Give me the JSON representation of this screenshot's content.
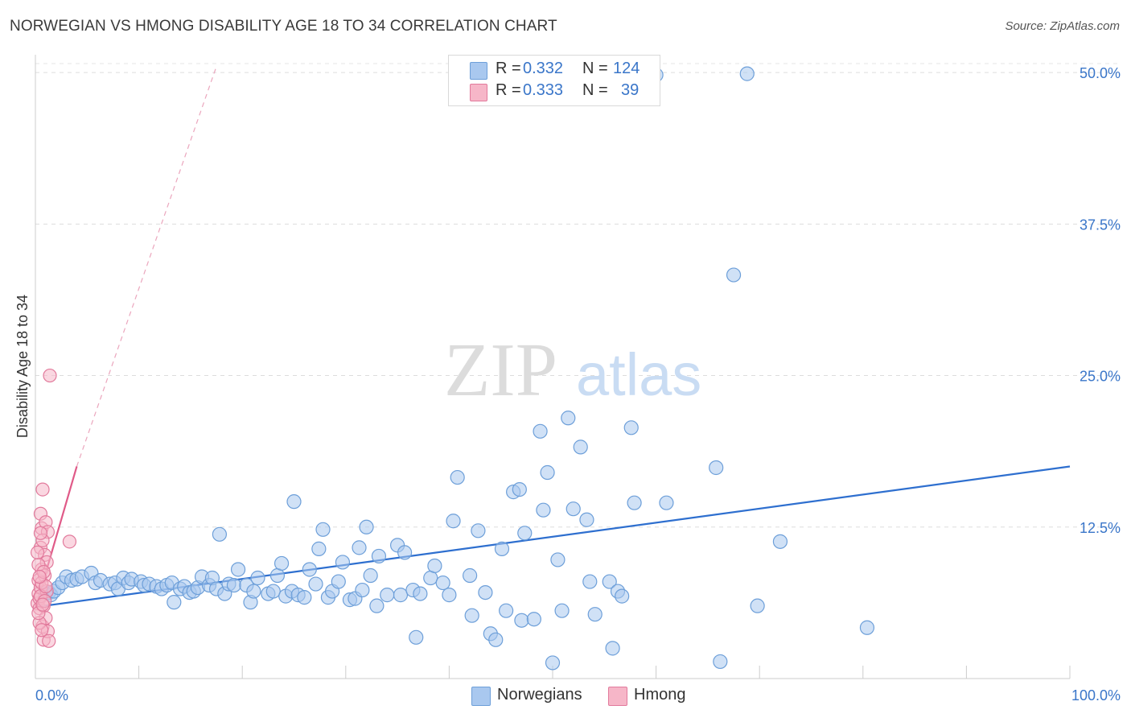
{
  "header": {
    "title": "NORWEGIAN VS HMONG DISABILITY AGE 18 TO 34 CORRELATION CHART",
    "source": "Source: ZipAtlas.com"
  },
  "watermark": {
    "zip": "ZIP",
    "atlas": "atlas"
  },
  "legend": {
    "rows": [
      {
        "r_label": "R =",
        "r_value": "0.332",
        "n_label": "N =",
        "n_value": "124",
        "color": "#a9c8ef"
      },
      {
        "r_label": "R =",
        "r_value": "0.333",
        "n_label": "N =",
        "n_value": "39",
        "color": "#f6b6c8"
      }
    ]
  },
  "bottom_legend": [
    {
      "label": "Norwegians",
      "color": "#a9c8ef"
    },
    {
      "label": "Hmong",
      "color": "#f6b6c8"
    }
  ],
  "colors": {
    "norwegian_fill": "#a9c8ef",
    "norwegian_stroke": "#6d9fd9",
    "norwegian_line": "#2e6fcf",
    "hmong_fill": "#f6b6c8",
    "hmong_stroke": "#e27a9c",
    "hmong_line": "#e05a88",
    "tick": "#3a76c9"
  },
  "chart_data": {
    "type": "scatter",
    "title": "NORWEGIAN VS HMONG DISABILITY AGE 18 TO 34 CORRELATION CHART",
    "xlabel": "",
    "ylabel": "Disability Age 18 to 34",
    "xlim": [
      0,
      100
    ],
    "ylim": [
      0,
      52
    ],
    "x_tick_labels": [
      "0.0%",
      "100.0%"
    ],
    "y_ticks": [
      12.5,
      25.0,
      37.5,
      50.0
    ],
    "y_tick_labels": [
      "12.5%",
      "25.0%",
      "37.5%",
      "50.0%"
    ],
    "grid": "horizontal dashed",
    "legend_position": "top-center",
    "series": [
      {
        "name": "Norwegians",
        "r": 0.332,
        "n": 124,
        "trend": {
          "x": [
            0,
            100
          ],
          "y": [
            5.9,
            17.5
          ],
          "style": "solid"
        },
        "points": [
          [
            1.0,
            7.0
          ],
          [
            1.3,
            7.1
          ],
          [
            1.5,
            6.9
          ],
          [
            1.8,
            7.2
          ],
          [
            2.2,
            7.5
          ],
          [
            2.6,
            7.9
          ],
          [
            3.0,
            8.4
          ],
          [
            3.5,
            8.1
          ],
          [
            4.0,
            8.2
          ],
          [
            4.5,
            8.4
          ],
          [
            5.4,
            8.7
          ],
          [
            5.8,
            7.9
          ],
          [
            6.3,
            8.1
          ],
          [
            7.2,
            7.8
          ],
          [
            7.7,
            7.9
          ],
          [
            8.0,
            7.4
          ],
          [
            8.5,
            8.3
          ],
          [
            9.0,
            7.9
          ],
          [
            9.3,
            8.2
          ],
          [
            10.2,
            8.0
          ],
          [
            10.5,
            7.7
          ],
          [
            11.0,
            7.8
          ],
          [
            11.7,
            7.6
          ],
          [
            12.2,
            7.4
          ],
          [
            12.7,
            7.7
          ],
          [
            13.2,
            7.9
          ],
          [
            13.4,
            6.3
          ],
          [
            14.0,
            7.4
          ],
          [
            14.4,
            7.6
          ],
          [
            14.9,
            7.1
          ],
          [
            15.3,
            7.2
          ],
          [
            15.7,
            7.5
          ],
          [
            16.1,
            8.4
          ],
          [
            16.8,
            7.7
          ],
          [
            17.1,
            8.3
          ],
          [
            17.5,
            7.4
          ],
          [
            17.8,
            11.9
          ],
          [
            18.3,
            7.0
          ],
          [
            18.7,
            7.8
          ],
          [
            19.2,
            7.7
          ],
          [
            19.6,
            9.0
          ],
          [
            20.4,
            7.7
          ],
          [
            20.8,
            6.3
          ],
          [
            21.1,
            7.2
          ],
          [
            21.5,
            8.3
          ],
          [
            22.5,
            7.0
          ],
          [
            23.0,
            7.2
          ],
          [
            23.4,
            8.5
          ],
          [
            23.8,
            9.5
          ],
          [
            24.2,
            6.8
          ],
          [
            24.8,
            7.2
          ],
          [
            25.0,
            14.6
          ],
          [
            25.4,
            6.9
          ],
          [
            26.0,
            6.7
          ],
          [
            26.5,
            9.0
          ],
          [
            27.1,
            7.8
          ],
          [
            27.4,
            10.7
          ],
          [
            27.8,
            12.3
          ],
          [
            28.3,
            6.7
          ],
          [
            28.7,
            7.2
          ],
          [
            29.3,
            8.0
          ],
          [
            29.7,
            9.6
          ],
          [
            30.4,
            6.5
          ],
          [
            30.9,
            6.6
          ],
          [
            31.3,
            10.8
          ],
          [
            31.6,
            7.3
          ],
          [
            32.0,
            12.5
          ],
          [
            32.4,
            8.5
          ],
          [
            33.0,
            6.0
          ],
          [
            33.2,
            10.1
          ],
          [
            34.0,
            6.9
          ],
          [
            35.0,
            11.0
          ],
          [
            35.3,
            6.9
          ],
          [
            35.7,
            10.4
          ],
          [
            36.5,
            7.3
          ],
          [
            36.8,
            3.4
          ],
          [
            37.2,
            7.0
          ],
          [
            38.2,
            8.3
          ],
          [
            38.6,
            9.3
          ],
          [
            39.4,
            7.9
          ],
          [
            40.0,
            6.9
          ],
          [
            40.4,
            13.0
          ],
          [
            40.8,
            16.6
          ],
          [
            42.0,
            8.5
          ],
          [
            42.2,
            5.2
          ],
          [
            42.8,
            12.2
          ],
          [
            43.5,
            7.1
          ],
          [
            44.0,
            3.7
          ],
          [
            44.5,
            3.2
          ],
          [
            45.1,
            10.7
          ],
          [
            45.5,
            5.6
          ],
          [
            46.2,
            15.4
          ],
          [
            46.8,
            15.6
          ],
          [
            47.0,
            4.8
          ],
          [
            47.3,
            12.0
          ],
          [
            48.2,
            4.9
          ],
          [
            48.8,
            20.4
          ],
          [
            49.1,
            13.9
          ],
          [
            49.5,
            17.0
          ],
          [
            50.0,
            1.3
          ],
          [
            50.5,
            9.8
          ],
          [
            50.9,
            5.6
          ],
          [
            51.5,
            21.5
          ],
          [
            52.0,
            14.0
          ],
          [
            52.7,
            19.1
          ],
          [
            53.3,
            13.1
          ],
          [
            53.6,
            8.0
          ],
          [
            54.1,
            5.3
          ],
          [
            55.5,
            8.0
          ],
          [
            55.8,
            2.5
          ],
          [
            56.3,
            7.2
          ],
          [
            56.7,
            6.8
          ],
          [
            57.6,
            20.7
          ],
          [
            57.9,
            14.5
          ],
          [
            61.0,
            14.5
          ],
          [
            65.8,
            17.4
          ],
          [
            66.2,
            1.4
          ],
          [
            67.5,
            33.3
          ],
          [
            68.8,
            49.9
          ],
          [
            69.8,
            6.0
          ],
          [
            72.0,
            11.3
          ],
          [
            80.4,
            4.2
          ],
          [
            60.0,
            49.8
          ]
        ]
      },
      {
        "name": "Hmong",
        "r": 0.333,
        "n": 39,
        "trend": {
          "x": [
            0,
            4.0
          ],
          "y": [
            5.8,
            17.5
          ],
          "style": "solid",
          "extension": {
            "x": [
              4.0,
              17.5
            ],
            "y": [
              17.5,
              50.5
            ],
            "style": "dashed"
          }
        },
        "points": [
          [
            0.2,
            6.2
          ],
          [
            0.3,
            7.0
          ],
          [
            0.3,
            8.1
          ],
          [
            0.4,
            5.8
          ],
          [
            0.4,
            6.6
          ],
          [
            0.5,
            7.5
          ],
          [
            0.5,
            10.8
          ],
          [
            0.5,
            13.6
          ],
          [
            0.6,
            9.0
          ],
          [
            0.6,
            12.4
          ],
          [
            0.7,
            15.6
          ],
          [
            0.7,
            4.3
          ],
          [
            0.8,
            3.2
          ],
          [
            0.8,
            6.0
          ],
          [
            0.9,
            8.5
          ],
          [
            0.9,
            10.2
          ],
          [
            1.0,
            12.9
          ],
          [
            1.0,
            5.0
          ],
          [
            1.1,
            7.2
          ],
          [
            1.1,
            9.6
          ],
          [
            1.2,
            12.1
          ],
          [
            1.2,
            3.9
          ],
          [
            1.3,
            3.1
          ],
          [
            1.4,
            25.0
          ],
          [
            0.3,
            9.4
          ],
          [
            0.4,
            4.6
          ],
          [
            0.5,
            6.8
          ],
          [
            0.6,
            7.9
          ],
          [
            0.7,
            11.4
          ],
          [
            0.8,
            8.8
          ],
          [
            0.9,
            6.4
          ],
          [
            1.0,
            7.6
          ],
          [
            0.2,
            10.4
          ],
          [
            0.3,
            5.4
          ],
          [
            0.4,
            8.4
          ],
          [
            0.5,
            12.0
          ],
          [
            0.6,
            4.0
          ],
          [
            0.7,
            6.1
          ],
          [
            3.3,
            11.3
          ]
        ]
      }
    ]
  }
}
